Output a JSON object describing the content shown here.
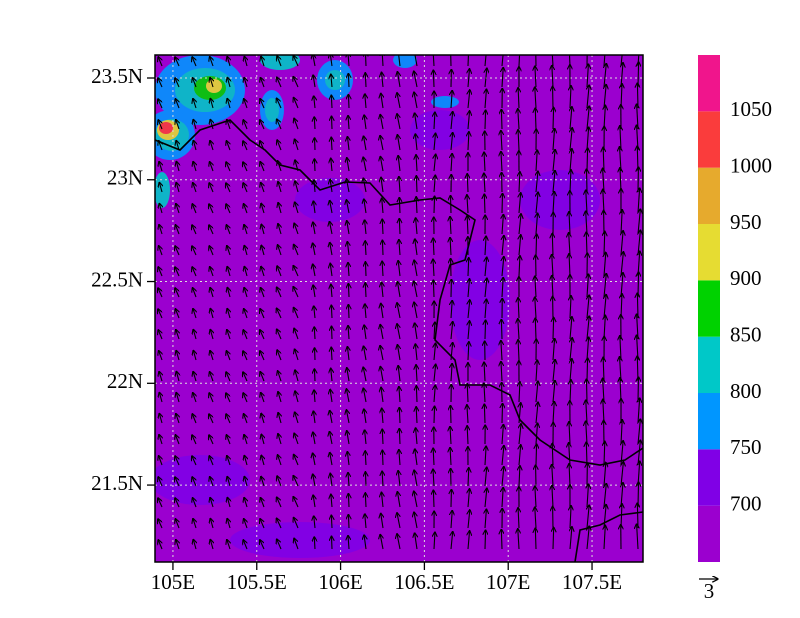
{
  "map": {
    "xlim": [
      104.893,
      107.804
    ],
    "ylim": [
      21.122,
      23.613
    ],
    "xticks": [
      {
        "value": 105,
        "label": "105E"
      },
      {
        "value": 105.5,
        "label": "105.5E"
      },
      {
        "value": 106,
        "label": "106E"
      },
      {
        "value": 106.5,
        "label": "106.5E"
      },
      {
        "value": 107,
        "label": "107E"
      },
      {
        "value": 107.5,
        "label": "107.5E"
      }
    ],
    "yticks": [
      {
        "value": 21.5,
        "label": "21.5N"
      },
      {
        "value": 22,
        "label": "22N"
      },
      {
        "value": 22.5,
        "label": "22.5N"
      },
      {
        "value": 23,
        "label": "23N"
      },
      {
        "value": 23.5,
        "label": "23.5N"
      }
    ],
    "grid": true
  },
  "colorbar": {
    "lim": [
      650,
      1100
    ],
    "levels": [
      700,
      750,
      800,
      850,
      900,
      950,
      1000,
      1050
    ],
    "colors": [
      "#9b00cf",
      "#8000e6",
      "#0096ff",
      "#00c8c8",
      "#00d200",
      "#e6dc32",
      "#e6aa2d",
      "#fa3c3c",
      "#f0158c"
    ]
  },
  "reference_vector": 3
}
